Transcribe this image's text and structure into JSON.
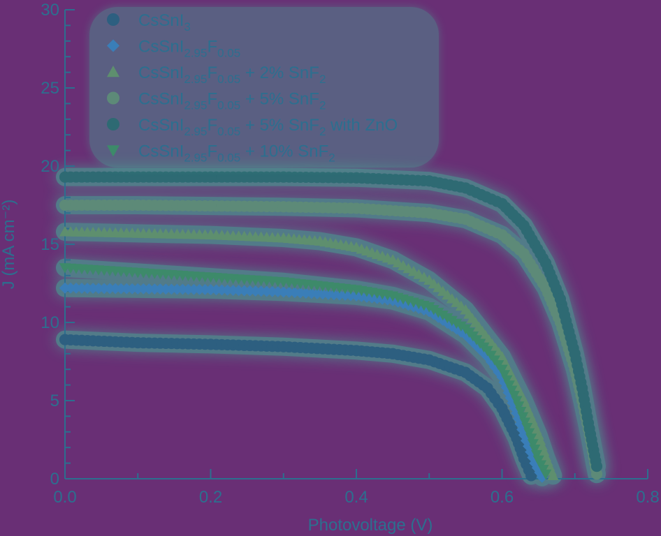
{
  "chart_data": {
    "type": "scatter",
    "xlabel": "Photovoltage (V)",
    "ylabel": "J (mA cm⁻²)",
    "xlim": [
      0.0,
      0.8
    ],
    "ylim": [
      0,
      30
    ],
    "x_ticks": [
      "0.0",
      "0.2",
      "0.4",
      "0.6",
      "0.8"
    ],
    "y_ticks": [
      "0",
      "5",
      "10",
      "15",
      "20",
      "25",
      "30"
    ],
    "x_tick_values": [
      0.0,
      0.2,
      0.4,
      0.6,
      0.8
    ],
    "y_tick_values": [
      0,
      5,
      10,
      15,
      20,
      25,
      30
    ],
    "grid": false,
    "legend_position": "top-left",
    "background_color": "#692f75",
    "series": [
      {
        "name": "CsSnI3",
        "label_parts": [
          [
            "CsSnI",
            "n"
          ],
          [
            "3",
            "sub"
          ]
        ],
        "marker": "circle",
        "color": "#2d5f80",
        "x": [
          0.0,
          0.1,
          0.2,
          0.3,
          0.4,
          0.45,
          0.5,
          0.55,
          0.58,
          0.6,
          0.62,
          0.63,
          0.64
        ],
        "y": [
          8.9,
          8.7,
          8.6,
          8.45,
          8.2,
          8.0,
          7.6,
          6.8,
          5.8,
          4.5,
          2.6,
          1.3,
          0.2
        ]
      },
      {
        "name": "CsSnI2.95F0.05",
        "label_parts": [
          [
            "CsSnI",
            "n"
          ],
          [
            "2.95",
            "sub"
          ],
          [
            "F",
            "n"
          ],
          [
            "0.05",
            "sub"
          ]
        ],
        "marker": "diamond",
        "color": "#3a7eb8",
        "x": [
          0.0,
          0.1,
          0.2,
          0.3,
          0.4,
          0.45,
          0.5,
          0.55,
          0.58,
          0.6,
          0.62,
          0.63,
          0.645,
          0.655
        ],
        "y": [
          12.2,
          12.15,
          12.1,
          11.95,
          11.7,
          11.4,
          10.7,
          9.2,
          7.8,
          6.5,
          4.2,
          2.8,
          1.0,
          0.1
        ]
      },
      {
        "name": "CsSnI2.95F0.05 + 2% SnF2",
        "label_parts": [
          [
            "CsSnI",
            "n"
          ],
          [
            "2.95",
            "sub"
          ],
          [
            "F",
            "n"
          ],
          [
            "0.05",
            "sub"
          ],
          [
            " + 2% SnF",
            "n"
          ],
          [
            "2",
            "sub"
          ]
        ],
        "marker": "triangle-up",
        "color": "#5e8f6e",
        "x": [
          0.0,
          0.1,
          0.2,
          0.3,
          0.35,
          0.4,
          0.45,
          0.5,
          0.55,
          0.6,
          0.63,
          0.65,
          0.66,
          0.67
        ],
        "y": [
          15.8,
          15.7,
          15.6,
          15.4,
          15.2,
          14.8,
          14.0,
          12.7,
          10.8,
          7.8,
          5.0,
          2.8,
          1.4,
          0.2
        ]
      },
      {
        "name": "CsSnI2.95F0.05 + 5% SnF2",
        "label_parts": [
          [
            "CsSnI",
            "n"
          ],
          [
            "2.95",
            "sub"
          ],
          [
            "F",
            "n"
          ],
          [
            "0.05",
            "sub"
          ],
          [
            " + 5% SnF",
            "n"
          ],
          [
            "2",
            "sub"
          ]
        ],
        "marker": "circle",
        "color": "#5d8a78",
        "x": [
          0.0,
          0.1,
          0.2,
          0.3,
          0.4,
          0.5,
          0.55,
          0.6,
          0.63,
          0.66,
          0.68,
          0.7,
          0.71,
          0.72,
          0.73
        ],
        "y": [
          17.5,
          17.5,
          17.45,
          17.4,
          17.3,
          17.0,
          16.6,
          15.6,
          14.4,
          12.2,
          10.0,
          7.0,
          5.0,
          2.8,
          0.3
        ]
      },
      {
        "name": "CsSnI2.95F0.05 + 5% SnF2 with ZnO",
        "label_parts": [
          [
            "CsSnI",
            "n"
          ],
          [
            "2.95",
            "sub"
          ],
          [
            "F",
            "n"
          ],
          [
            "0.05",
            "sub"
          ],
          [
            " + 5% SnF",
            "n"
          ],
          [
            "2",
            "sub"
          ],
          [
            " with ZnO",
            "n"
          ]
        ],
        "marker": "circle",
        "color": "#2e6a73",
        "x": [
          0.0,
          0.1,
          0.2,
          0.3,
          0.4,
          0.5,
          0.55,
          0.6,
          0.63,
          0.66,
          0.68,
          0.7,
          0.71,
          0.72,
          0.73
        ],
        "y": [
          19.3,
          19.3,
          19.3,
          19.3,
          19.25,
          19.05,
          18.6,
          17.6,
          16.2,
          13.8,
          11.5,
          8.0,
          5.8,
          3.2,
          0.8
        ]
      },
      {
        "name": "CsSnI2.95F0.05 + 10% SnF2",
        "label_parts": [
          [
            "CsSnI",
            "n"
          ],
          [
            "2.95",
            "sub"
          ],
          [
            "F",
            "n"
          ],
          [
            "0.05",
            "sub"
          ],
          [
            " + 10% SnF",
            "n"
          ],
          [
            "2",
            "sub"
          ]
        ],
        "marker": "triangle-down",
        "color": "#3d8a6a",
        "x": [
          0.0,
          0.1,
          0.2,
          0.3,
          0.4,
          0.45,
          0.5,
          0.55,
          0.58,
          0.6,
          0.62,
          0.64,
          0.65,
          0.66
        ],
        "y": [
          13.5,
          13.2,
          12.9,
          12.6,
          12.1,
          11.7,
          11.0,
          9.6,
          8.2,
          7.0,
          5.0,
          2.6,
          1.2,
          0.3
        ]
      }
    ]
  }
}
